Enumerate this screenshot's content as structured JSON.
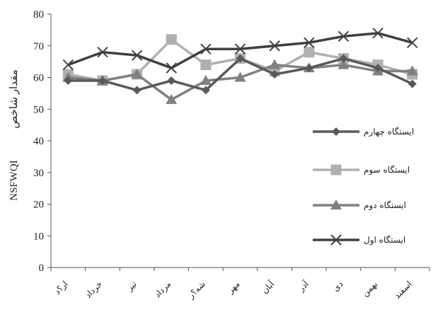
{
  "chart_data": {
    "type": "line",
    "categories": [
      "تیر",
      "خرداد",
      "تیر",
      "مرداد",
      "شهریور",
      "مهر",
      "آبان",
      "آذر",
      "دی",
      "بهمن",
      "اسفند"
    ],
    "category_labels_display": [
      "ار؟د",
      "خرداد",
      "تیر",
      "مرداد",
      "شه؟ر",
      "مهر",
      "آبان",
      "آذر",
      "دی",
      "بهمن",
      "اسفند"
    ],
    "ylabel_latin": "NSFWQI",
    "ylabel_persian": "مقدار شاخص",
    "ylim": [
      0,
      80
    ],
    "yticks": [
      "0",
      "10",
      "20",
      "30",
      "40",
      "50",
      "60",
      "70",
      "80"
    ],
    "grid": false,
    "legend_position": "right",
    "series": [
      {
        "name": "ایستگاه چهارم",
        "color": "#595959",
        "marker": "diamond",
        "values": [
          59,
          59,
          56,
          59,
          56,
          66,
          61,
          63,
          66,
          63,
          58
        ]
      },
      {
        "name": "ایستگاه سوم",
        "color": "#b0b0b0",
        "marker": "square",
        "values": [
          61,
          59,
          61,
          72,
          64,
          66,
          62,
          68,
          66,
          64,
          61
        ]
      },
      {
        "name": "ایستگاه دوم",
        "color": "#808080",
        "marker": "triangle",
        "values": [
          60,
          59,
          61,
          53,
          59,
          60,
          64,
          63,
          64,
          62,
          62
        ]
      },
      {
        "name": "ایستگاه اول",
        "color": "#404040",
        "marker": "x",
        "values": [
          64,
          68,
          67,
          63,
          69,
          69,
          70,
          71,
          73,
          74,
          71
        ]
      }
    ]
  }
}
